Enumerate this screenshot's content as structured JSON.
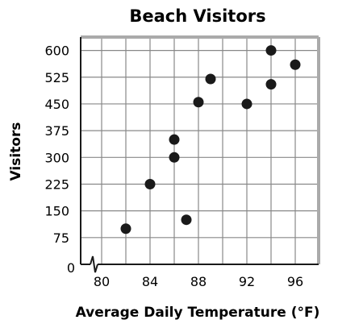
{
  "chart_data": {
    "type": "scatter",
    "title": "Beach Visitors",
    "xlabel": "Average Daily Temperature (°F)",
    "ylabel": "Visitors",
    "xlim": [
      78,
      98
    ],
    "ylim": [
      0,
      637.5
    ],
    "axis_break": "x",
    "grid": true,
    "x_ticks": [
      "80",
      "84",
      "88",
      "92",
      "96"
    ],
    "x_tick_values": [
      80,
      84,
      88,
      92,
      96
    ],
    "y_origin_label": "0",
    "y_ticks": [
      "75",
      "150",
      "225",
      "300",
      "375",
      "450",
      "525",
      "600"
    ],
    "y_tick_values": [
      75,
      150,
      225,
      300,
      375,
      450,
      525,
      600
    ],
    "colors": {
      "points": "#1a1a1a",
      "grid": "#888888",
      "frame": "#aaaaaa"
    },
    "points": [
      {
        "x": 82,
        "y": 100
      },
      {
        "x": 84,
        "y": 225
      },
      {
        "x": 86,
        "y": 350
      },
      {
        "x": 86,
        "y": 300
      },
      {
        "x": 87,
        "y": 125
      },
      {
        "x": 88,
        "y": 455
      },
      {
        "x": 89,
        "y": 520
      },
      {
        "x": 92,
        "y": 450
      },
      {
        "x": 94,
        "y": 600
      },
      {
        "x": 94,
        "y": 505
      },
      {
        "x": 96,
        "y": 560
      }
    ]
  }
}
